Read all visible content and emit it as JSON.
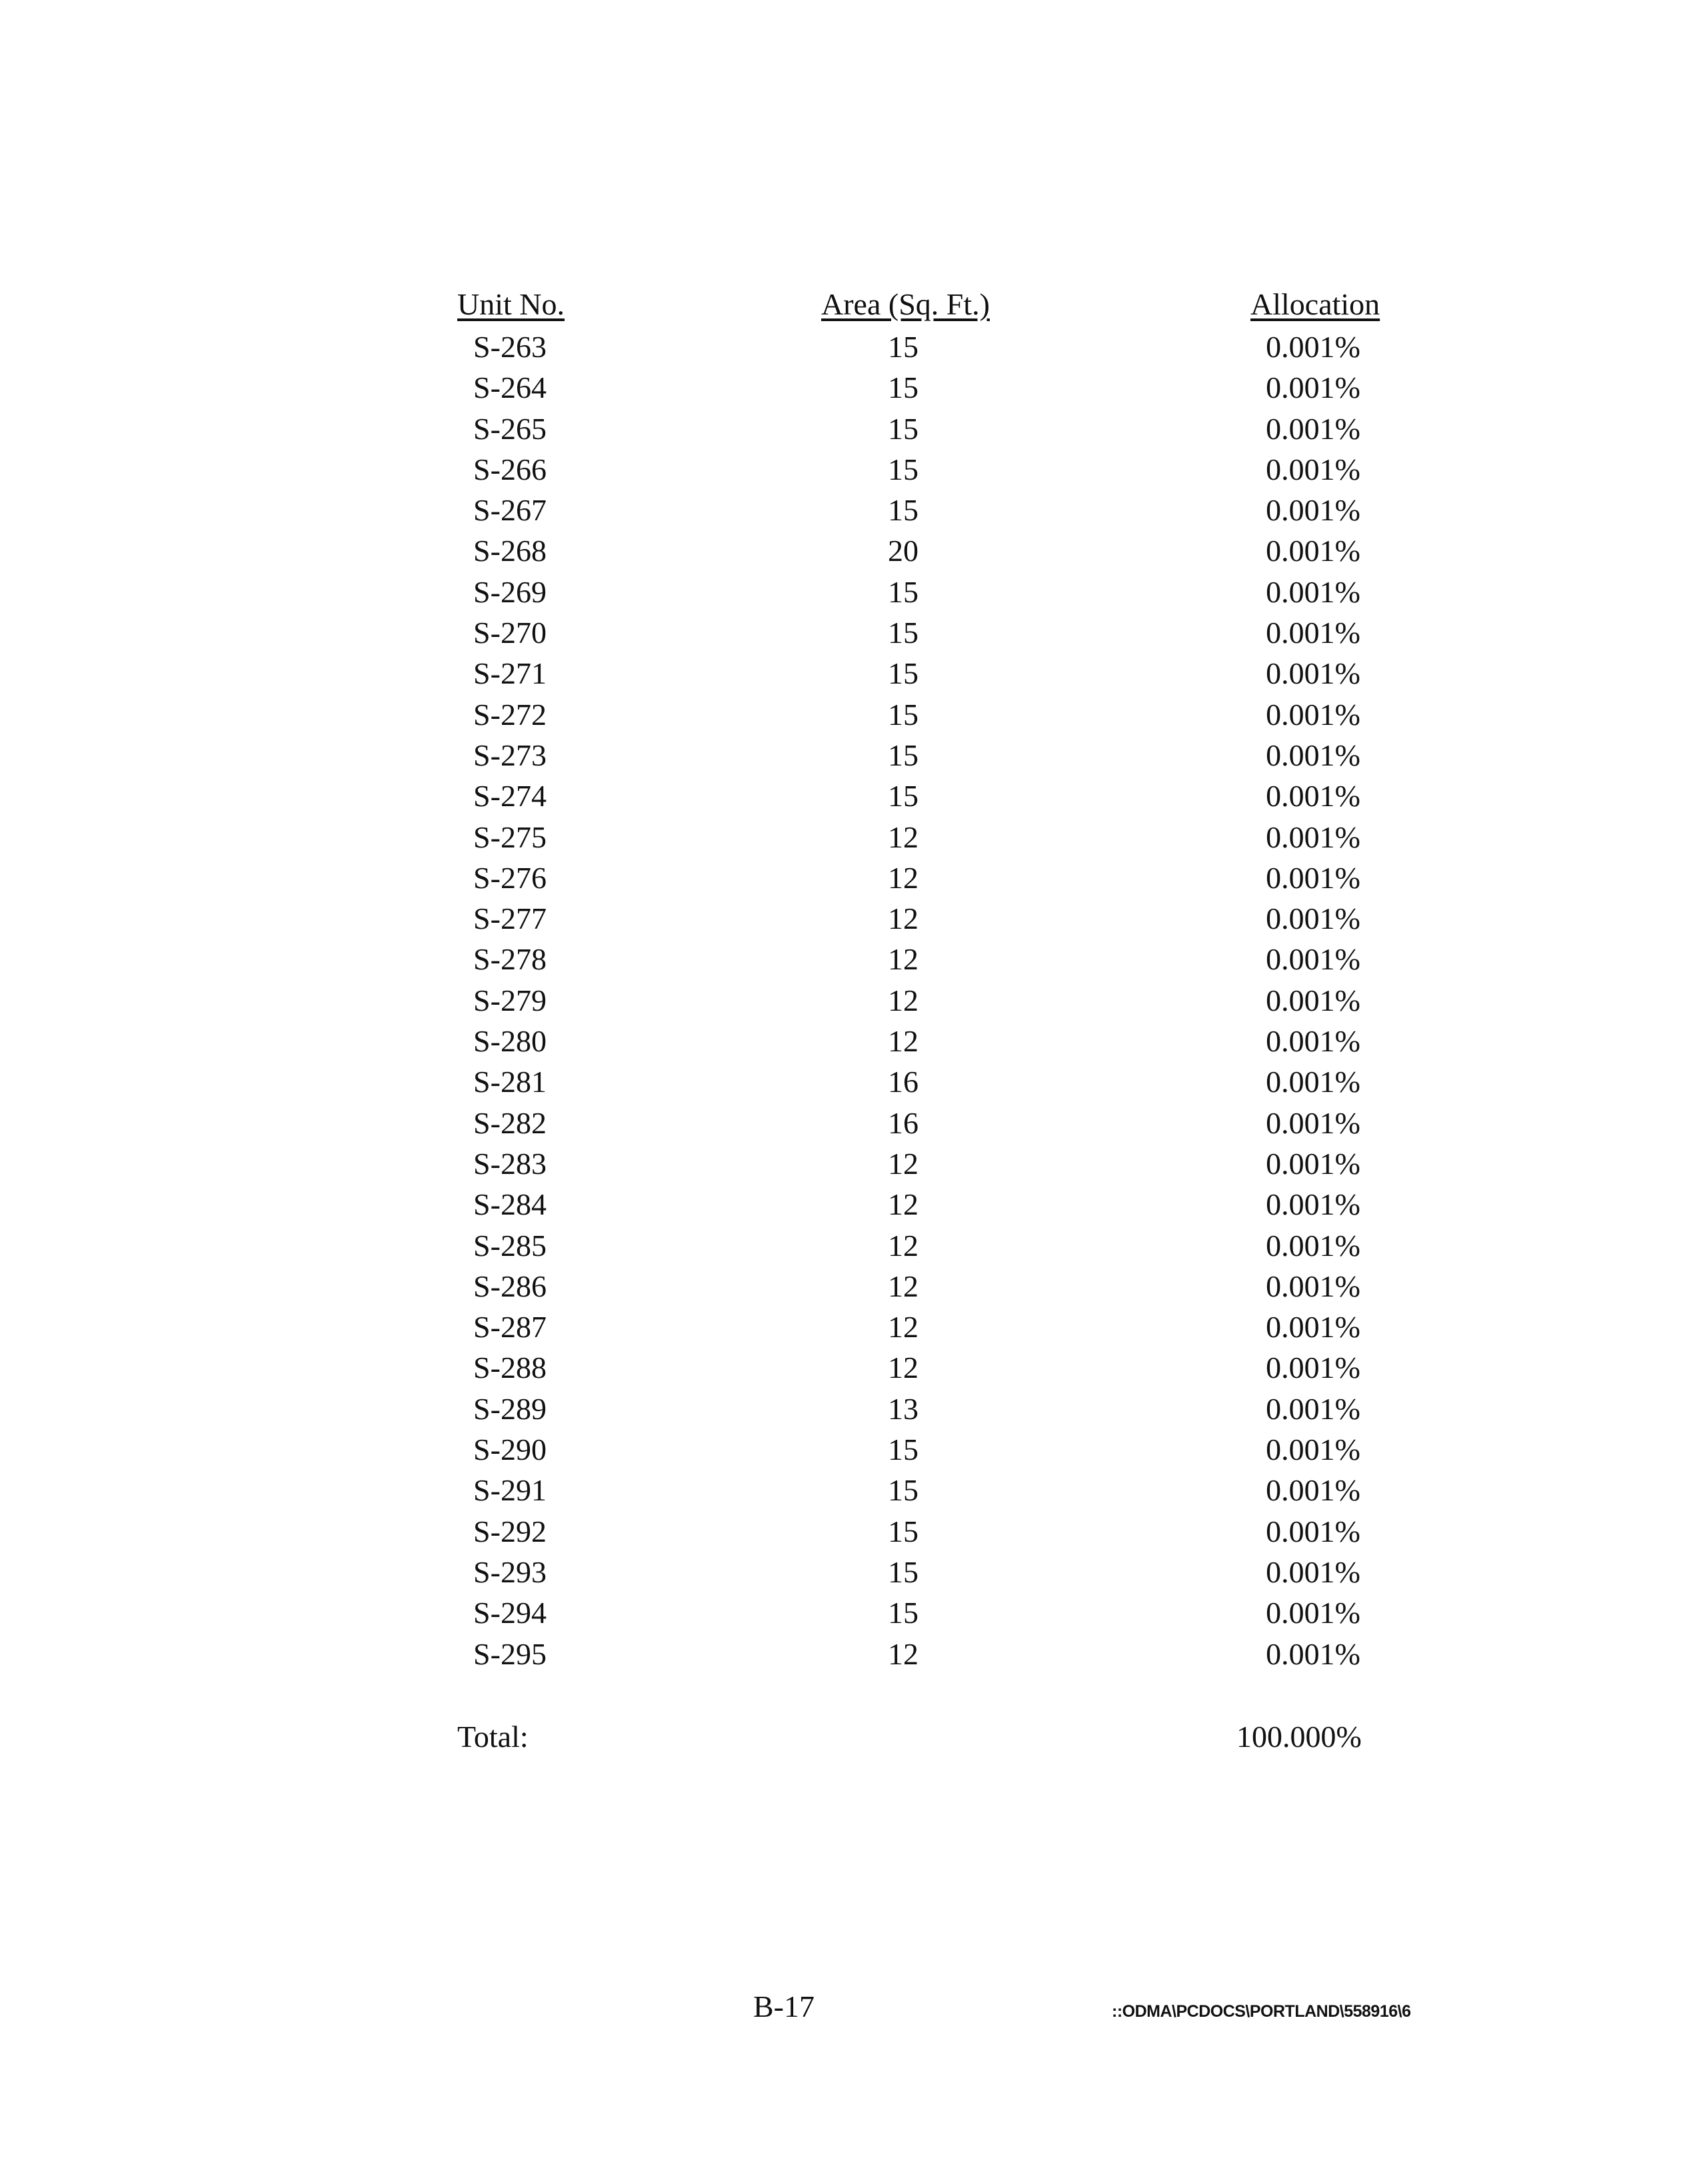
{
  "headers": {
    "unit": "Unit No.",
    "area": "Area (Sq. Ft.)",
    "allocation": "Allocation"
  },
  "rows": [
    {
      "unit": "S-263",
      "area": "15",
      "allocation": "0.001%"
    },
    {
      "unit": "S-264",
      "area": "15",
      "allocation": "0.001%"
    },
    {
      "unit": "S-265",
      "area": "15",
      "allocation": "0.001%"
    },
    {
      "unit": "S-266",
      "area": "15",
      "allocation": "0.001%"
    },
    {
      "unit": "S-267",
      "area": "15",
      "allocation": "0.001%"
    },
    {
      "unit": "S-268",
      "area": "20",
      "allocation": "0.001%"
    },
    {
      "unit": "S-269",
      "area": "15",
      "allocation": "0.001%"
    },
    {
      "unit": "S-270",
      "area": "15",
      "allocation": "0.001%"
    },
    {
      "unit": "S-271",
      "area": "15",
      "allocation": "0.001%"
    },
    {
      "unit": "S-272",
      "area": "15",
      "allocation": "0.001%"
    },
    {
      "unit": "S-273",
      "area": "15",
      "allocation": "0.001%"
    },
    {
      "unit": "S-274",
      "area": "15",
      "allocation": "0.001%"
    },
    {
      "unit": "S-275",
      "area": "12",
      "allocation": "0.001%"
    },
    {
      "unit": "S-276",
      "area": "12",
      "allocation": "0.001%"
    },
    {
      "unit": "S-277",
      "area": "12",
      "allocation": "0.001%"
    },
    {
      "unit": "S-278",
      "area": "12",
      "allocation": "0.001%"
    },
    {
      "unit": "S-279",
      "area": "12",
      "allocation": "0.001%"
    },
    {
      "unit": "S-280",
      "area": "12",
      "allocation": "0.001%"
    },
    {
      "unit": "S-281",
      "area": "16",
      "allocation": "0.001%"
    },
    {
      "unit": "S-282",
      "area": "16",
      "allocation": "0.001%"
    },
    {
      "unit": "S-283",
      "area": "12",
      "allocation": "0.001%"
    },
    {
      "unit": "S-284",
      "area": "12",
      "allocation": "0.001%"
    },
    {
      "unit": "S-285",
      "area": "12",
      "allocation": "0.001%"
    },
    {
      "unit": "S-286",
      "area": "12",
      "allocation": "0.001%"
    },
    {
      "unit": "S-287",
      "area": "12",
      "allocation": "0.001%"
    },
    {
      "unit": "S-288",
      "area": "12",
      "allocation": "0.001%"
    },
    {
      "unit": "S-289",
      "area": "13",
      "allocation": "0.001%"
    },
    {
      "unit": "S-290",
      "area": "15",
      "allocation": "0.001%"
    },
    {
      "unit": "S-291",
      "area": "15",
      "allocation": "0.001%"
    },
    {
      "unit": "S-292",
      "area": "15",
      "allocation": "0.001%"
    },
    {
      "unit": "S-293",
      "area": "15",
      "allocation": "0.001%"
    },
    {
      "unit": "S-294",
      "area": "15",
      "allocation": "0.001%"
    },
    {
      "unit": "S-295",
      "area": "12",
      "allocation": "0.001%"
    }
  ],
  "total": {
    "label": "Total:",
    "allocation": "100.000%"
  },
  "page_number": "B-17",
  "doc_path": "::ODMA\\PCDOCS\\PORTLAND\\558916\\6"
}
